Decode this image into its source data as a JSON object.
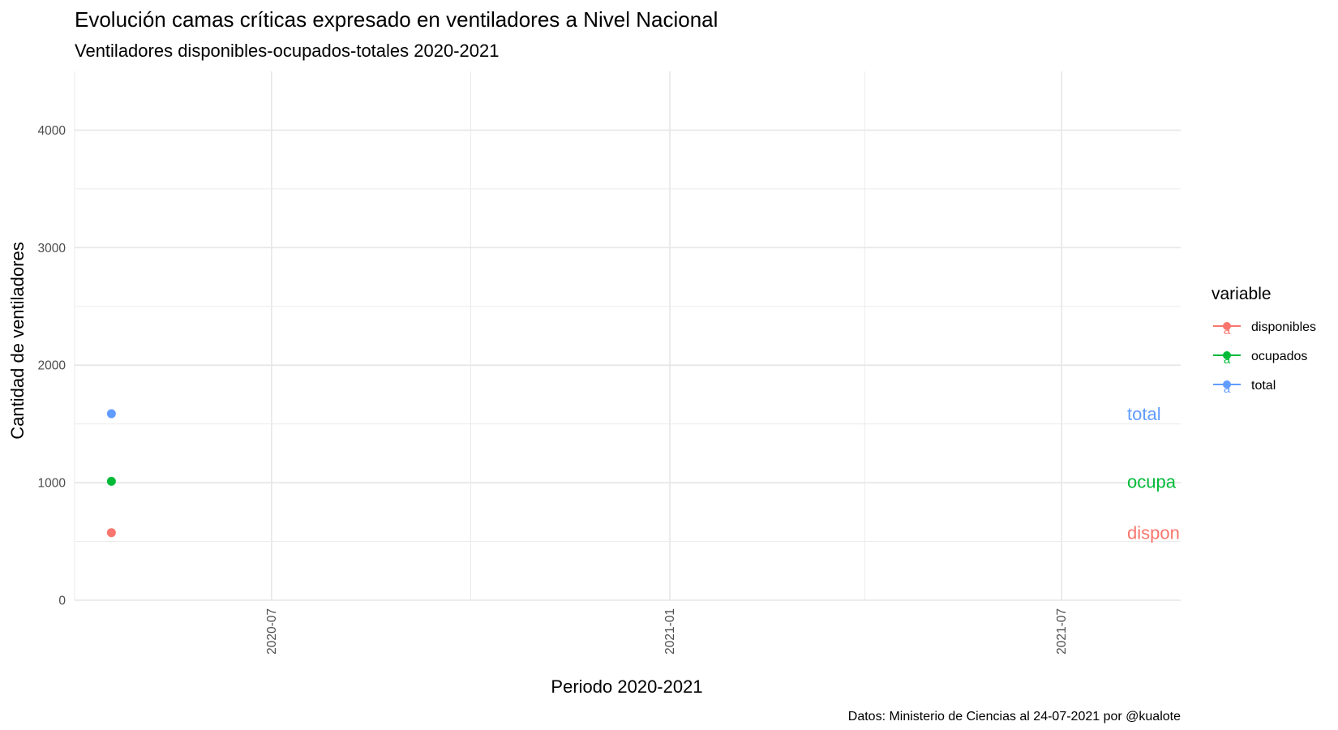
{
  "chart_data": {
    "type": "line",
    "title": "Evolución camas críticas expresado en ventiladores a Nivel Nacional",
    "subtitle": "Ventiladores disponibles-ocupados-totales 2020-2021",
    "xlabel": "Periodo 2020-2021",
    "ylabel": "Cantidad de ventiladores",
    "caption": "Datos: Ministerio de Ciencias al 24-07-2021 por @kualote",
    "x_type": "date",
    "xlim": [
      "2020-04-01",
      "2021-08-25"
    ],
    "ylim": [
      0,
      4500
    ],
    "x_ticks": [
      {
        "label": "2020-07",
        "value": "2020-07-01"
      },
      {
        "label": "2021-01",
        "value": "2021-01-01"
      },
      {
        "label": "2021-07",
        "value": "2021-07-01"
      }
    ],
    "x_minor": [
      "2020-04-01",
      "2020-10-01",
      "2021-04-01"
    ],
    "y_ticks": [
      0,
      1000,
      2000,
      3000,
      4000
    ],
    "grid": true,
    "legend": {
      "title": "variable",
      "position": "right",
      "entries": [
        {
          "label": "disponibles",
          "color": "#F8766D"
        },
        {
          "label": "ocupados",
          "color": "#00BA38"
        },
        {
          "label": "total",
          "color": "#619CFF"
        }
      ]
    },
    "series": [
      {
        "name": "disponibles",
        "color": "#F8766D",
        "end_label": "dispon",
        "points": [
          {
            "x": "2020-04-18",
            "y": 575
          }
        ]
      },
      {
        "name": "ocupados",
        "color": "#00BA38",
        "end_label": "ocupa",
        "points": [
          {
            "x": "2020-04-18",
            "y": 1012
          }
        ]
      },
      {
        "name": "total",
        "color": "#619CFF",
        "end_label": "total",
        "points": [
          {
            "x": "2020-04-18",
            "y": 1587
          }
        ]
      }
    ]
  }
}
